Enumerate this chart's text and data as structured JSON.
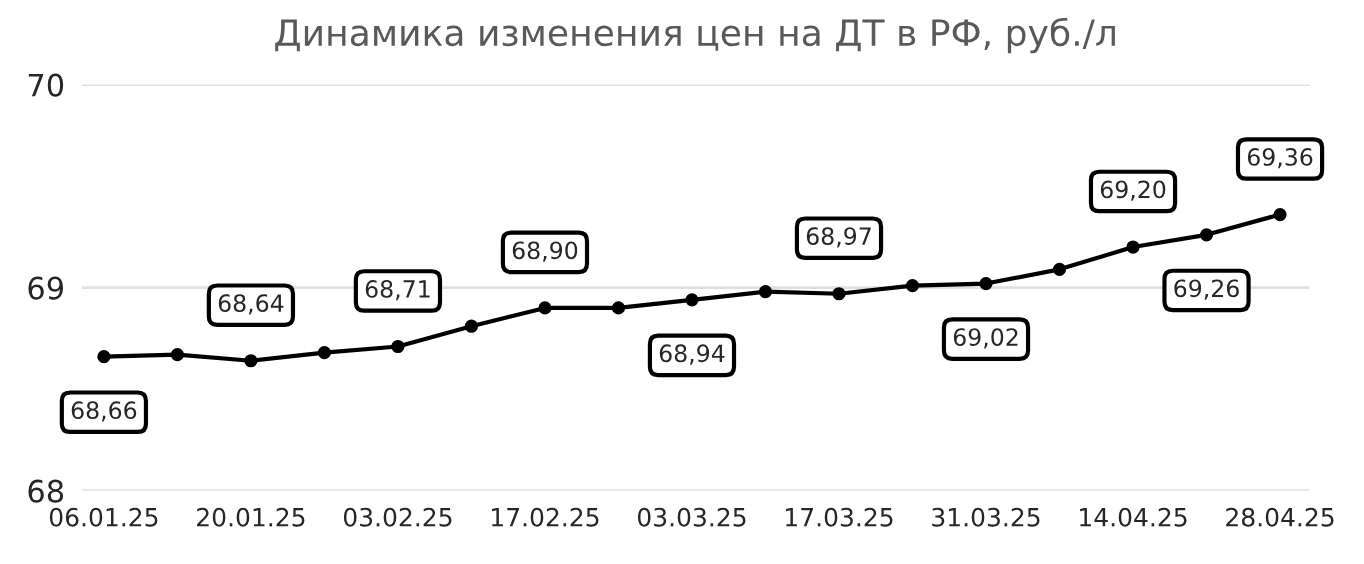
{
  "chart_data": {
    "type": "line",
    "title": "Динамика изменения цен на ДТ в РФ, руб./л",
    "categories": [
      "06.01.25",
      null,
      "20.01.25",
      null,
      "03.02.25",
      null,
      "17.02.25",
      null,
      "03.03.25",
      null,
      "17.03.25",
      null,
      "31.03.25",
      null,
      "14.04.25",
      null,
      "28.04.25"
    ],
    "series": [
      {
        "color": "#000000",
        "values": [
          68.66,
          68.67,
          68.64,
          68.68,
          68.71,
          68.81,
          68.9,
          68.9,
          68.94,
          68.98,
          68.97,
          69.01,
          69.02,
          69.09,
          69.2,
          69.26,
          69.36
        ],
        "value_labels": [
          "68,66",
          null,
          "68,64",
          null,
          "68,71",
          null,
          "68,90",
          null,
          "68,94",
          null,
          "68,97",
          null,
          "69,02",
          null,
          "69,20",
          "69,26",
          "69,36"
        ]
      }
    ],
    "ylim": [
      68,
      70
    ],
    "yticks": [
      68,
      69,
      70
    ],
    "grid": "y",
    "marker": "circle",
    "line_style": "solid",
    "legend": false
  }
}
